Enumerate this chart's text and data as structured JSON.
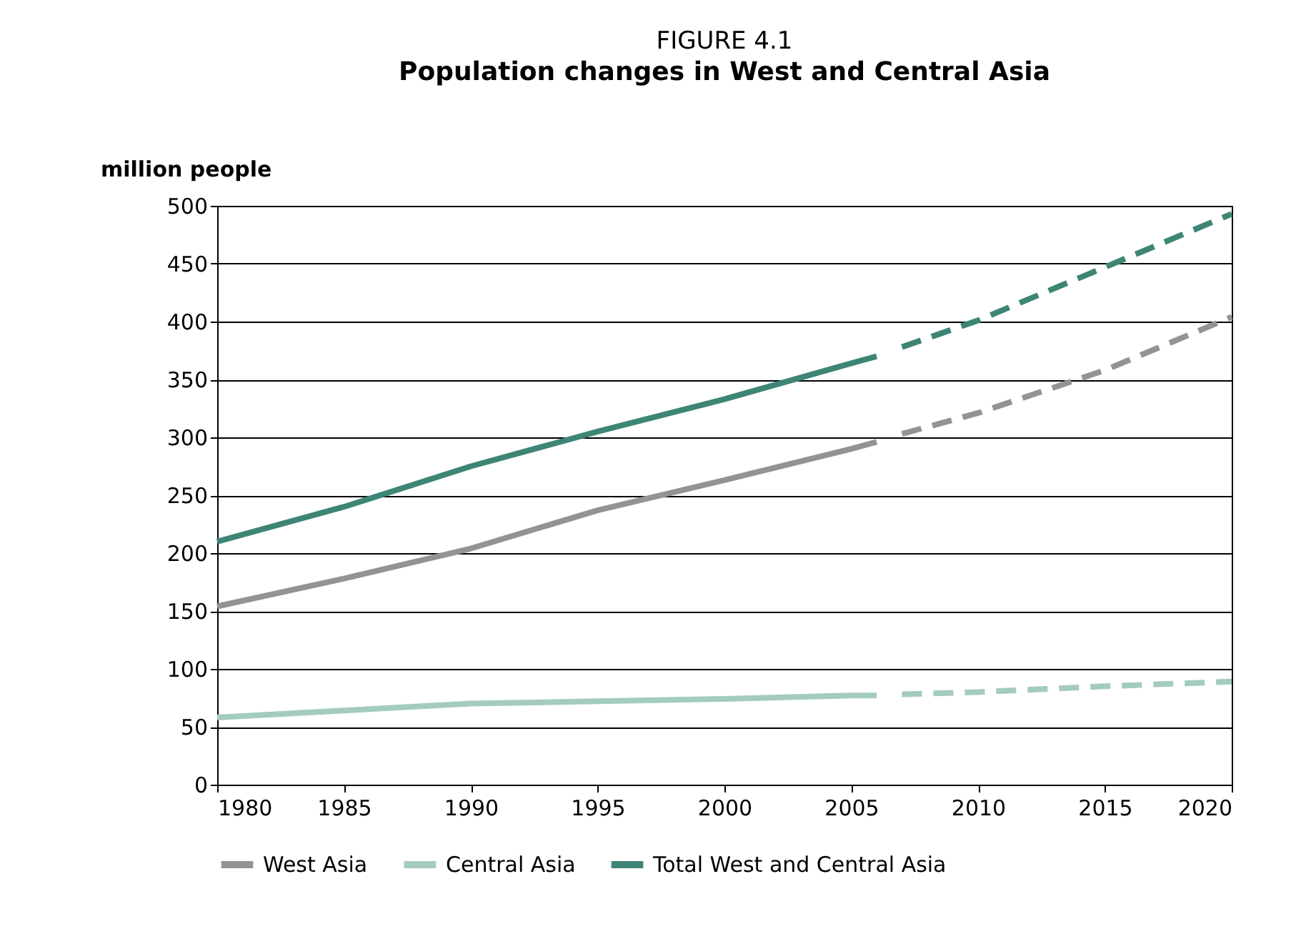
{
  "chart_data": {
    "type": "line",
    "title": "FIGURE 4.1",
    "subtitle": "Population changes in West and Central Asia",
    "ylabel": "million people",
    "xlim": [
      1980,
      2020
    ],
    "xticks": [
      1980,
      1985,
      1990,
      1995,
      2000,
      2005,
      2010,
      2015,
      2020
    ],
    "ylim": [
      0,
      500
    ],
    "yticks": [
      0,
      50,
      100,
      150,
      200,
      250,
      300,
      350,
      400,
      450,
      500
    ],
    "grid": "y",
    "legend": "bottom",
    "marker": "none",
    "series": [
      {
        "name": "West Asia",
        "color": "#939393",
        "line_style": "solid",
        "x": [
          1980,
          1985,
          1990,
          1995,
          2000,
          2005,
          2006
        ],
        "values": [
          154,
          178,
          204,
          237,
          263,
          290,
          296
        ]
      },
      {
        "name": "Central Asia",
        "color": "#a3cbbf",
        "line_style": "solid",
        "x": [
          1980,
          1985,
          1990,
          1995,
          2000,
          2005,
          2006
        ],
        "values": [
          58,
          64,
          70,
          72,
          74,
          77,
          77
        ]
      },
      {
        "name": "Total West and Central Asia",
        "color": "#3d8575",
        "line_style": "solid",
        "x": [
          1980,
          1985,
          1990,
          1995,
          2000,
          2005,
          2006
        ],
        "values": [
          210,
          240,
          275,
          305,
          333,
          364,
          370
        ]
      },
      {
        "color": "#939393",
        "line_style": "dashed",
        "x": [
          2007,
          2010,
          2015,
          2020
        ],
        "values": [
          303,
          321,
          358,
          404
        ]
      },
      {
        "color": "#a3cbbf",
        "line_style": "dashed",
        "x": [
          2007,
          2010,
          2015,
          2020
        ],
        "values": [
          78,
          80,
          85,
          89
        ]
      },
      {
        "color": "#3d8575",
        "line_style": "dashed",
        "x": [
          2007,
          2010,
          2015,
          2020
        ],
        "values": [
          378,
          401,
          447,
          493
        ]
      }
    ]
  }
}
